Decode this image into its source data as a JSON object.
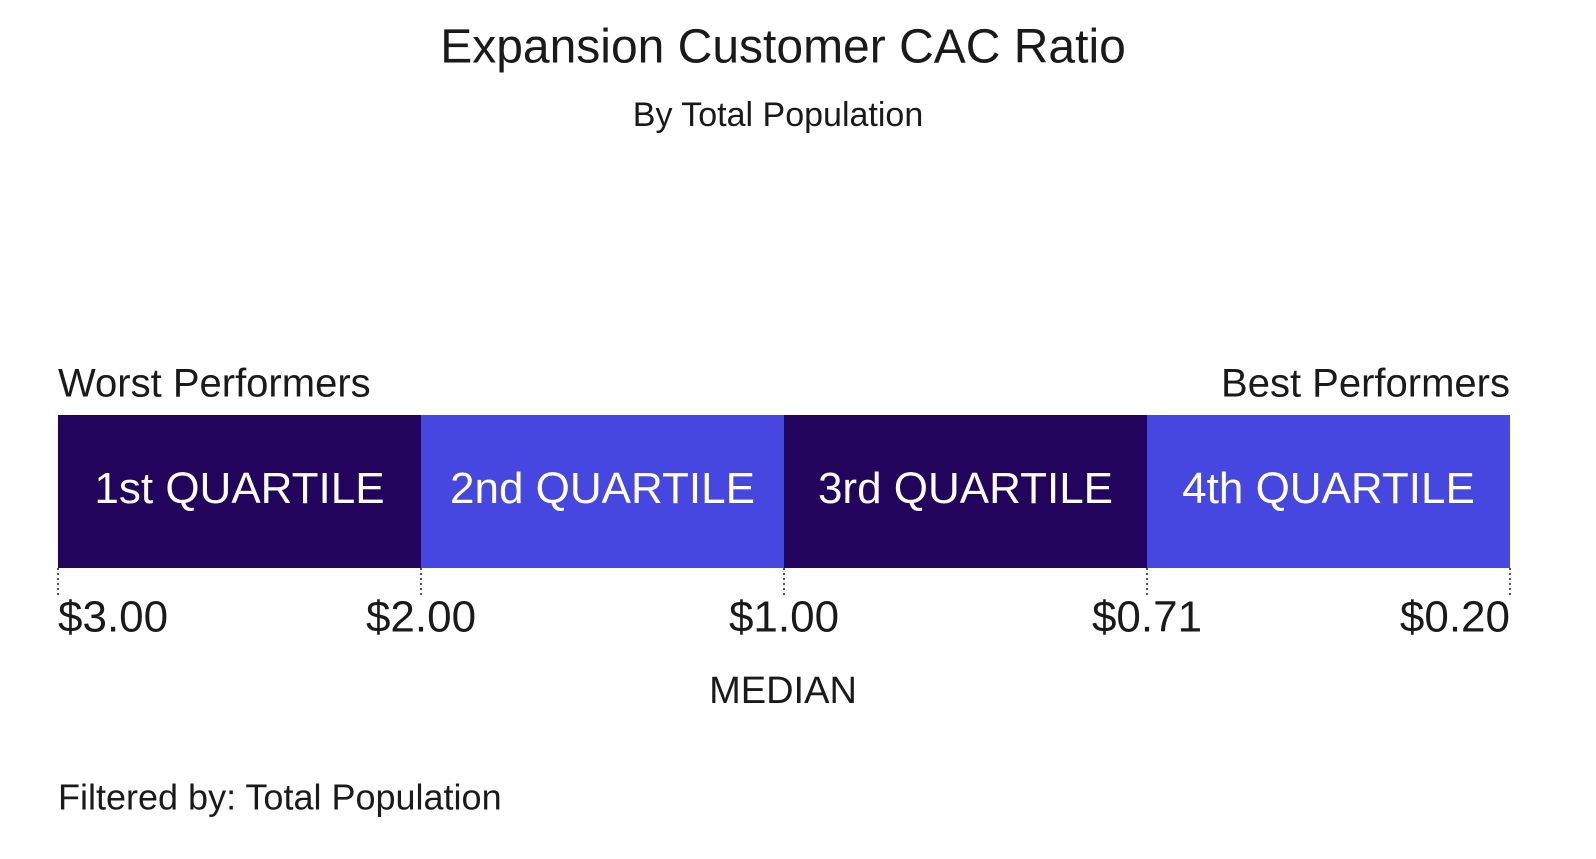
{
  "title": "Expansion Customer CAC Ratio",
  "subtitle": "By Total Population",
  "left_label": "Worst Performers",
  "right_label": "Best Performers",
  "quartiles": [
    {
      "label": "1st QUARTILE",
      "color": "#22045c"
    },
    {
      "label": "2nd QUARTILE",
      "color": "#4646e0"
    },
    {
      "label": "3rd QUARTILE",
      "color": "#22045c"
    },
    {
      "label": "4th QUARTILE",
      "color": "#4646e0"
    }
  ],
  "boundaries": [
    "$3.00",
    "$2.00",
    "$1.00",
    "$0.71",
    "$0.20"
  ],
  "median_label": "MEDIAN",
  "footer": "Filtered by: Total Population"
}
